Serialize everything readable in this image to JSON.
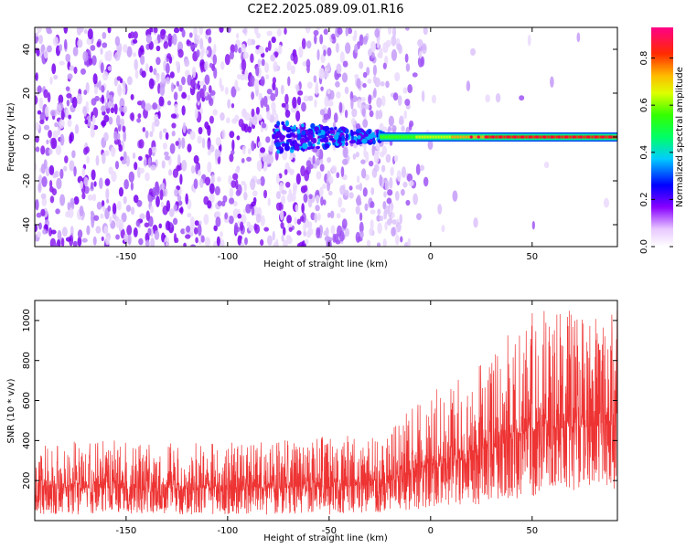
{
  "chart_data": [
    {
      "type": "heatmap",
      "title": "C2E2.2025.089.09.01.R16",
      "xlabel": "Height of straight line (km)",
      "ylabel": "Frequency (Hz)",
      "xlim": [
        -195,
        92
      ],
      "ylim": [
        -50,
        50
      ],
      "x_ticks": [
        -150,
        -100,
        -50,
        0,
        50
      ],
      "y_ticks": [
        -40,
        -20,
        0,
        20,
        40
      ],
      "colorbar": {
        "label": "Normalized spectral amplitude",
        "range": [
          0,
          0.93
        ],
        "ticks": [
          0.0,
          0.2,
          0.4,
          0.6,
          0.8
        ],
        "colormap": "rainbow (violet-blue-cyan-green-yellow-orange-red-magenta)"
      },
      "features": {
        "noise_region_x": [
          -195,
          -25
        ],
        "signal_line_frequency": 0,
        "signal_line_x": [
          -25,
          92
        ]
      },
      "grid": false
    },
    {
      "type": "line",
      "xlabel": "Height of straight line (km)",
      "ylabel": "SNR (10 * v/v)",
      "xlim": [
        -195,
        92
      ],
      "ylim": [
        0,
        1100
      ],
      "x_ticks": [
        -150,
        -100,
        -50,
        0,
        50
      ],
      "y_ticks": [
        200,
        400,
        600,
        800,
        1000
      ],
      "series": [
        {
          "color": "#ee3333",
          "envelope": {
            "x": [
              -195,
              -150,
              -100,
              -50,
              -25,
              0,
              25,
              50,
              75,
              92
            ],
            "low": [
              30,
              30,
              30,
              30,
              40,
              60,
              80,
              120,
              150,
              160
            ],
            "high": [
              410,
              400,
              390,
              420,
              430,
              640,
              780,
              1080,
              1050,
              1070
            ]
          }
        }
      ],
      "grid": false
    }
  ]
}
